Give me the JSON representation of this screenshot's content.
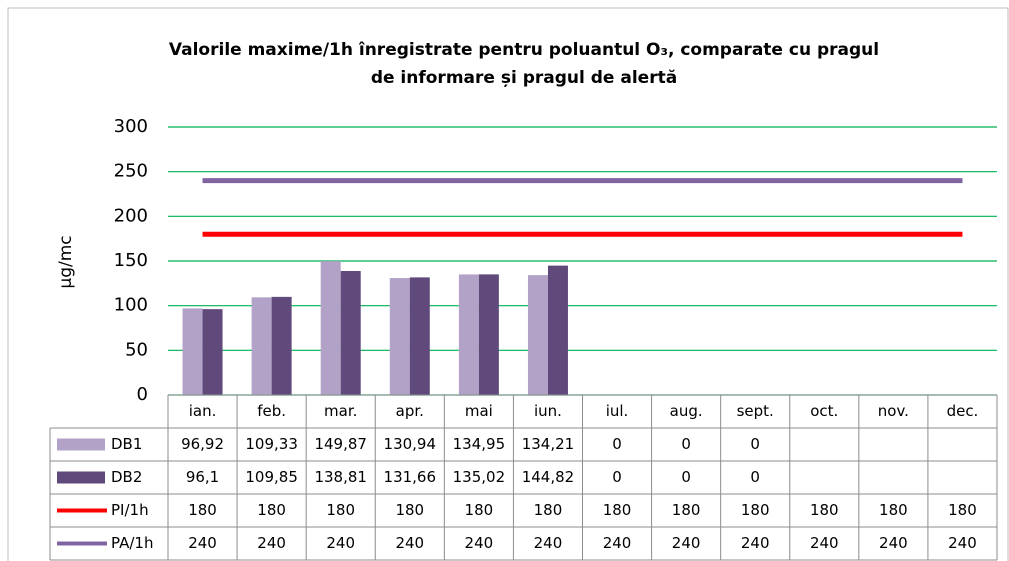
{
  "chart_data": {
    "type": "bar",
    "title": [
      "Valorile maxime/1h înregistrate pentru poluantul O₃, comparate cu pragul",
      "de informare și pragul de alertă"
    ],
    "y_label": "µg/mc",
    "categories": [
      "ian.",
      "feb.",
      "mar.",
      "apr.",
      "mai",
      "iun.",
      "iul.",
      "aug.",
      "sept.",
      "oct.",
      "nov.",
      "dec."
    ],
    "series": [
      {
        "name": "DB1",
        "type": "bar",
        "color": "#b3a2c7",
        "values": [
          96.92,
          109.33,
          149.87,
          130.94,
          134.95,
          134.21,
          0,
          0,
          0,
          null,
          null,
          null
        ],
        "value_labels": [
          "96,92",
          "109,33",
          "149,87",
          "130,94",
          "134,95",
          "134,21",
          "0",
          "0",
          "0",
          null,
          null,
          null
        ]
      },
      {
        "name": "DB2",
        "type": "bar",
        "color": "#604a7b",
        "values": [
          96.1,
          109.85,
          138.81,
          131.66,
          135.02,
          144.82,
          0,
          0,
          0,
          null,
          null,
          null
        ],
        "value_labels": [
          "96,1",
          "109,85",
          "138,81",
          "131,66",
          "135,02",
          "144,82",
          "0",
          "0",
          "0",
          null,
          null,
          null
        ]
      },
      {
        "name": "PI/1h",
        "type": "line",
        "color": "#ff0000",
        "values": [
          180,
          180,
          180,
          180,
          180,
          180,
          180,
          180,
          180,
          180,
          180,
          180
        ]
      },
      {
        "name": "PA/1h",
        "type": "line",
        "color": "#8064a2",
        "values": [
          240,
          240,
          240,
          240,
          240,
          240,
          240,
          240,
          240,
          240,
          240,
          240
        ]
      }
    ],
    "ylim": [
      0,
      300
    ],
    "yticks": [
      0,
      50,
      100,
      150,
      200,
      250,
      300
    ],
    "grid": true,
    "grid_color": "#00b050"
  }
}
